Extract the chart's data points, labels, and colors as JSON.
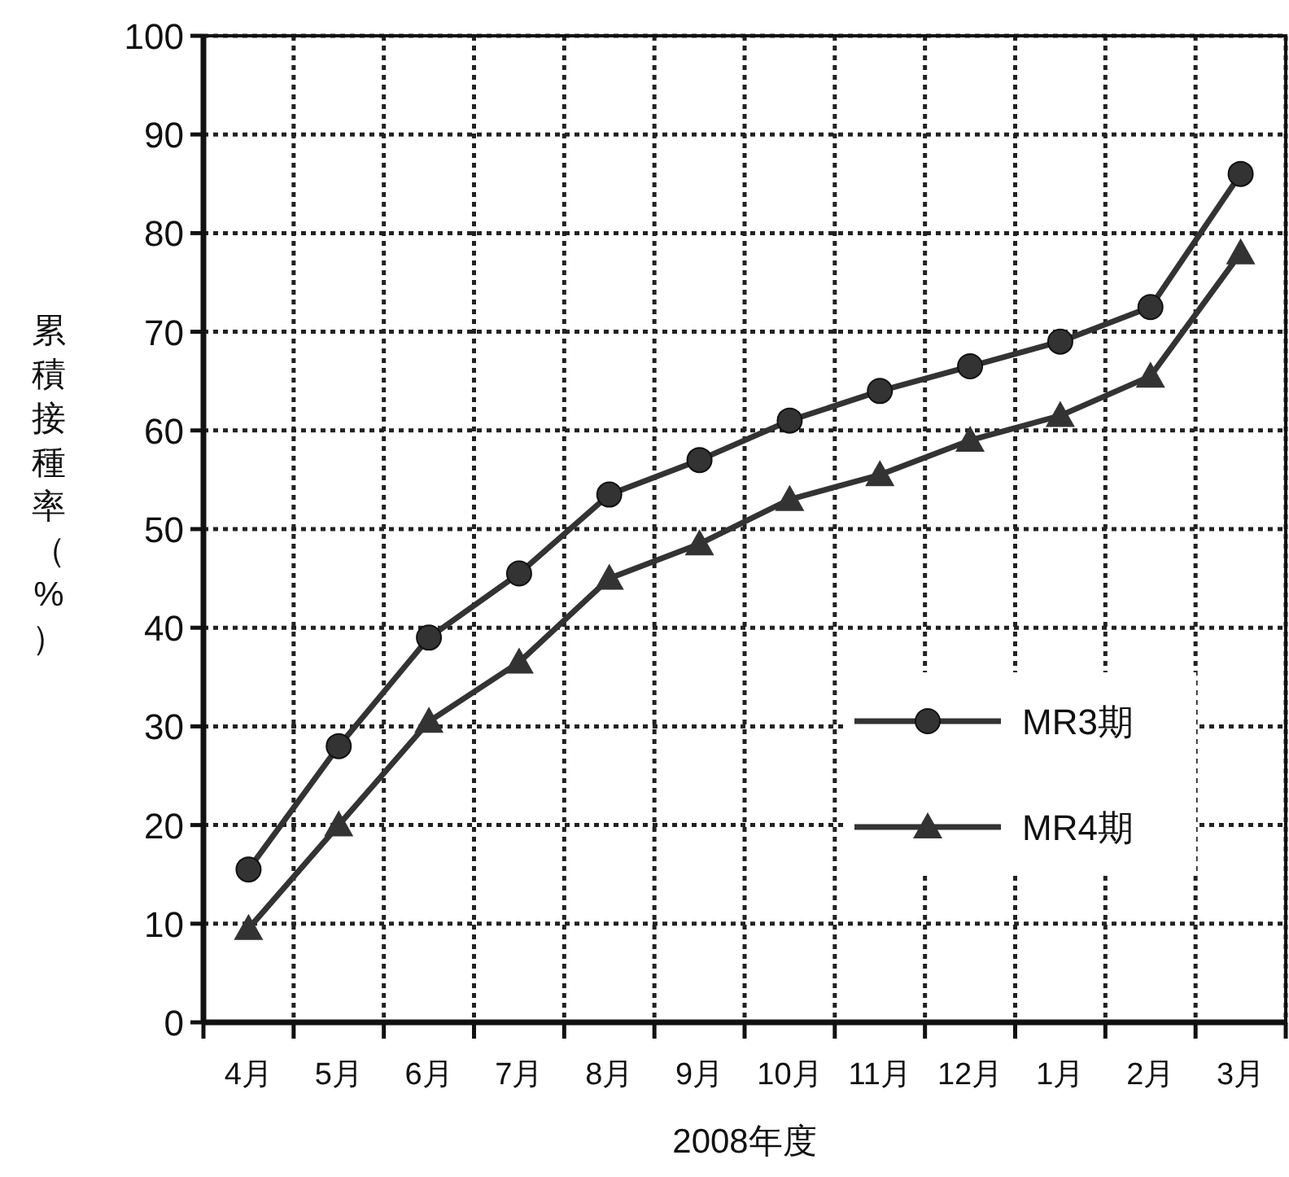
{
  "chart_data": {
    "type": "line",
    "xlabel": "2008年度",
    "ylabel": "累積接種率（%）",
    "categories": [
      "4月",
      "5月",
      "6月",
      "7月",
      "8月",
      "9月",
      "10月",
      "11月",
      "12月",
      "1月",
      "2月",
      "3月"
    ],
    "series": [
      {
        "name": "MR3期",
        "color": "#333333",
        "marker": "circle",
        "values": [
          15.5,
          28,
          39,
          45.5,
          53.5,
          57,
          61,
          64,
          66.5,
          69,
          72.5,
          86
        ]
      },
      {
        "name": "MR4期",
        "color": "#333333",
        "marker": "triangle",
        "values": [
          9.5,
          20,
          30.5,
          36.5,
          45,
          48.5,
          53,
          55.5,
          59,
          61.5,
          65.5,
          78
        ]
      }
    ],
    "ylim": [
      0,
      100
    ],
    "yticks": [
      0,
      10,
      20,
      30,
      40,
      50,
      60,
      70,
      80,
      90,
      100
    ],
    "grid": true,
    "legend": "bottom right",
    "line_style": "solid"
  }
}
